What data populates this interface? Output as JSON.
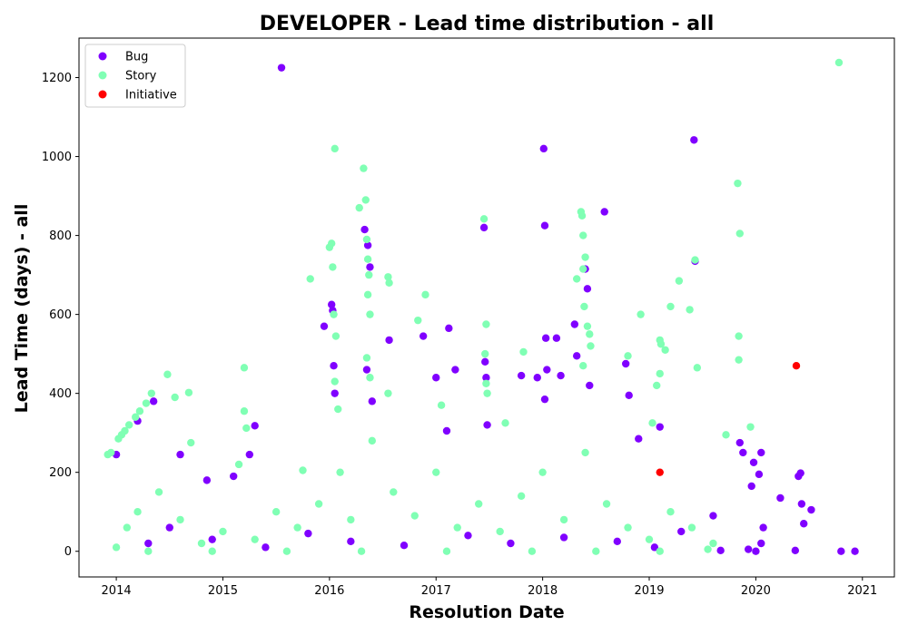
{
  "chart_data": {
    "type": "scatter",
    "title": "DEVELOPER - Lead time distribution - all",
    "xlabel": "Resolution Date",
    "ylabel": "Lead Time (days) - all",
    "xlim": [
      2013.65,
      2021.3
    ],
    "ylim": [
      -65,
      1300
    ],
    "x_ticks": [
      "2014",
      "2015",
      "2016",
      "2017",
      "2018",
      "2019",
      "2020",
      "2021"
    ],
    "y_ticks": [
      0,
      200,
      400,
      600,
      800,
      1000,
      1200
    ],
    "legend_position": "top-left",
    "grid": false,
    "series": [
      {
        "name": "Bug",
        "color": "#8000ff",
        "points": [
          [
            2014.0,
            245
          ],
          [
            2014.2,
            330
          ],
          [
            2014.35,
            380
          ],
          [
            2014.6,
            245
          ],
          [
            2014.85,
            180
          ],
          [
            2015.1,
            190
          ],
          [
            2015.25,
            245
          ],
          [
            2015.3,
            318
          ],
          [
            2015.55,
            1225
          ],
          [
            2015.95,
            570
          ],
          [
            2016.02,
            625
          ],
          [
            2016.03,
            610
          ],
          [
            2016.04,
            470
          ],
          [
            2016.05,
            400
          ],
          [
            2016.33,
            815
          ],
          [
            2016.36,
            775
          ],
          [
            2016.38,
            720
          ],
          [
            2016.35,
            460
          ],
          [
            2016.4,
            380
          ],
          [
            2016.56,
            535
          ],
          [
            2016.88,
            545
          ],
          [
            2017.0,
            440
          ],
          [
            2017.1,
            305
          ],
          [
            2017.12,
            565
          ],
          [
            2017.18,
            460
          ],
          [
            2017.45,
            820
          ],
          [
            2017.46,
            480
          ],
          [
            2017.47,
            440
          ],
          [
            2017.48,
            320
          ],
          [
            2017.8,
            445
          ],
          [
            2017.95,
            440
          ],
          [
            2018.01,
            1020
          ],
          [
            2018.02,
            825
          ],
          [
            2018.03,
            540
          ],
          [
            2018.04,
            460
          ],
          [
            2018.02,
            385
          ],
          [
            2018.13,
            540
          ],
          [
            2018.17,
            445
          ],
          [
            2018.3,
            575
          ],
          [
            2018.32,
            495
          ],
          [
            2018.4,
            715
          ],
          [
            2018.42,
            665
          ],
          [
            2018.44,
            420
          ],
          [
            2018.58,
            860
          ],
          [
            2018.78,
            475
          ],
          [
            2018.81,
            395
          ],
          [
            2018.9,
            285
          ],
          [
            2019.1,
            315
          ],
          [
            2019.42,
            1042
          ],
          [
            2019.43,
            735
          ],
          [
            2019.85,
            275
          ],
          [
            2019.88,
            250
          ],
          [
            2019.93,
            5
          ],
          [
            2019.96,
            165
          ],
          [
            2019.98,
            225
          ],
          [
            2020.0,
            0
          ],
          [
            2020.03,
            195
          ],
          [
            2020.05,
            250
          ],
          [
            2020.05,
            20
          ],
          [
            2020.07,
            60
          ],
          [
            2020.23,
            135
          ],
          [
            2020.37,
            2
          ],
          [
            2020.4,
            190
          ],
          [
            2020.42,
            198
          ],
          [
            2020.43,
            120
          ],
          [
            2020.45,
            70
          ],
          [
            2020.52,
            105
          ],
          [
            2020.8,
            0
          ],
          [
            2020.93,
            0
          ],
          [
            2014.3,
            20
          ],
          [
            2014.5,
            60
          ],
          [
            2014.9,
            30
          ],
          [
            2015.4,
            10
          ],
          [
            2015.8,
            45
          ],
          [
            2016.2,
            25
          ],
          [
            2016.7,
            15
          ],
          [
            2017.3,
            40
          ],
          [
            2017.7,
            20
          ],
          [
            2018.2,
            35
          ],
          [
            2018.7,
            25
          ],
          [
            2019.05,
            10
          ],
          [
            2019.3,
            50
          ],
          [
            2019.6,
            90
          ],
          [
            2019.67,
            2
          ]
        ]
      },
      {
        "name": "Story",
        "color": "#80ffb4",
        "points": [
          [
            2013.92,
            245
          ],
          [
            2013.95,
            250
          ],
          [
            2014.02,
            285
          ],
          [
            2014.05,
            295
          ],
          [
            2014.08,
            305
          ],
          [
            2014.12,
            320
          ],
          [
            2014.18,
            340
          ],
          [
            2014.22,
            355
          ],
          [
            2014.28,
            375
          ],
          [
            2014.33,
            400
          ],
          [
            2014.48,
            448
          ],
          [
            2014.55,
            390
          ],
          [
            2014.68,
            402
          ],
          [
            2014.7,
            275
          ],
          [
            2015.15,
            220
          ],
          [
            2015.2,
            465
          ],
          [
            2015.2,
            355
          ],
          [
            2015.22,
            312
          ],
          [
            2015.75,
            205
          ],
          [
            2015.82,
            690
          ],
          [
            2016.0,
            770
          ],
          [
            2016.02,
            780
          ],
          [
            2016.03,
            720
          ],
          [
            2016.04,
            600
          ],
          [
            2016.05,
            1020
          ],
          [
            2016.06,
            545
          ],
          [
            2016.05,
            430
          ],
          [
            2016.08,
            360
          ],
          [
            2016.28,
            870
          ],
          [
            2016.32,
            970
          ],
          [
            2016.34,
            890
          ],
          [
            2016.35,
            790
          ],
          [
            2016.36,
            740
          ],
          [
            2016.37,
            700
          ],
          [
            2016.36,
            650
          ],
          [
            2016.38,
            600
          ],
          [
            2016.35,
            490
          ],
          [
            2016.38,
            440
          ],
          [
            2016.55,
            695
          ],
          [
            2016.56,
            680
          ],
          [
            2016.55,
            400
          ],
          [
            2016.83,
            585
          ],
          [
            2016.9,
            650
          ],
          [
            2017.05,
            370
          ],
          [
            2017.45,
            842
          ],
          [
            2017.47,
            575
          ],
          [
            2017.46,
            500
          ],
          [
            2017.47,
            425
          ],
          [
            2017.48,
            400
          ],
          [
            2017.65,
            325
          ],
          [
            2017.82,
            505
          ],
          [
            2018.32,
            690
          ],
          [
            2018.36,
            860
          ],
          [
            2018.37,
            850
          ],
          [
            2018.38,
            800
          ],
          [
            2018.4,
            745
          ],
          [
            2018.38,
            715
          ],
          [
            2018.39,
            620
          ],
          [
            2018.42,
            570
          ],
          [
            2018.44,
            550
          ],
          [
            2018.45,
            520
          ],
          [
            2018.38,
            470
          ],
          [
            2018.8,
            495
          ],
          [
            2018.92,
            600
          ],
          [
            2019.03,
            325
          ],
          [
            2019.07,
            420
          ],
          [
            2019.1,
            535
          ],
          [
            2019.11,
            525
          ],
          [
            2019.1,
            450
          ],
          [
            2019.15,
            510
          ],
          [
            2019.2,
            620
          ],
          [
            2019.28,
            685
          ],
          [
            2019.38,
            612
          ],
          [
            2019.45,
            465
          ],
          [
            2019.43,
            738
          ],
          [
            2019.72,
            295
          ],
          [
            2019.83,
            932
          ],
          [
            2019.85,
            805
          ],
          [
            2019.84,
            545
          ],
          [
            2019.84,
            485
          ],
          [
            2019.95,
            315
          ],
          [
            2020.78,
            1238
          ],
          [
            2014.0,
            10
          ],
          [
            2014.1,
            60
          ],
          [
            2014.2,
            100
          ],
          [
            2014.4,
            150
          ],
          [
            2014.6,
            80
          ],
          [
            2014.8,
            20
          ],
          [
            2015.0,
            50
          ],
          [
            2015.3,
            30
          ],
          [
            2015.5,
            100
          ],
          [
            2015.7,
            60
          ],
          [
            2015.9,
            120
          ],
          [
            2016.1,
            200
          ],
          [
            2016.2,
            80
          ],
          [
            2016.4,
            280
          ],
          [
            2016.6,
            150
          ],
          [
            2016.8,
            90
          ],
          [
            2017.0,
            200
          ],
          [
            2017.2,
            60
          ],
          [
            2017.4,
            120
          ],
          [
            2017.6,
            50
          ],
          [
            2017.8,
            140
          ],
          [
            2018.0,
            200
          ],
          [
            2018.2,
            80
          ],
          [
            2018.4,
            250
          ],
          [
            2018.6,
            120
          ],
          [
            2018.8,
            60
          ],
          [
            2019.0,
            30
          ],
          [
            2019.2,
            100
          ],
          [
            2019.4,
            60
          ],
          [
            2019.6,
            20
          ],
          [
            2014.3,
            0
          ],
          [
            2014.9,
            0
          ],
          [
            2015.6,
            0
          ],
          [
            2016.3,
            0
          ],
          [
            2017.1,
            0
          ],
          [
            2017.9,
            0
          ],
          [
            2018.5,
            0
          ],
          [
            2019.1,
            0
          ],
          [
            2019.55,
            5
          ]
        ]
      },
      {
        "name": "Initiative",
        "color": "#ff0000",
        "points": [
          [
            2019.1,
            200
          ],
          [
            2020.38,
            470
          ]
        ]
      }
    ]
  }
}
